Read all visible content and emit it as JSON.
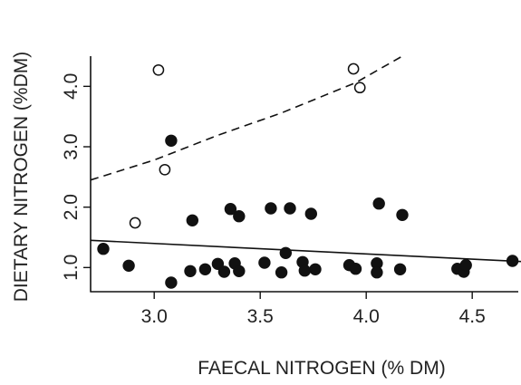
{
  "chart_data": {
    "type": "scatter",
    "title": "",
    "xlabel": "FAECAL NITROGEN (% DM)",
    "ylabel": "DIETARY NITROGEN (%DM)",
    "xlim": [
      2.7,
      4.73
    ],
    "ylim": [
      0.6,
      4.5
    ],
    "x_ticks": [
      "3.0",
      "3.5",
      "4.0",
      "4.5"
    ],
    "y_ticks": [
      "1.0",
      "2.0",
      "3.0",
      "4.0"
    ],
    "x_tick_values": [
      3.0,
      3.5,
      4.0,
      4.5
    ],
    "y_tick_values": [
      1.0,
      2.0,
      3.0,
      4.0
    ],
    "grid": false,
    "colors": {
      "ink": "#111111",
      "background": "#ffffff"
    },
    "series": [
      {
        "marker": "open-circle",
        "points": [
          [
            3.02,
            4.27
          ],
          [
            3.94,
            4.29
          ],
          [
            3.97,
            3.98
          ],
          [
            3.05,
            2.62
          ],
          [
            2.91,
            1.74
          ]
        ]
      },
      {
        "marker": "filled-circle",
        "points": [
          [
            3.08,
            3.1
          ],
          [
            2.76,
            1.31
          ],
          [
            2.88,
            1.03
          ],
          [
            3.08,
            0.75
          ],
          [
            3.17,
            0.94
          ],
          [
            3.18,
            1.78
          ],
          [
            3.24,
            0.97
          ],
          [
            3.3,
            1.06
          ],
          [
            3.33,
            0.93
          ],
          [
            3.36,
            1.97
          ],
          [
            3.38,
            1.07
          ],
          [
            3.4,
            0.94
          ],
          [
            3.4,
            1.85
          ],
          [
            3.52,
            1.08
          ],
          [
            3.55,
            1.98
          ],
          [
            3.6,
            0.92
          ],
          [
            3.62,
            1.24
          ],
          [
            3.64,
            1.98
          ],
          [
            3.7,
            1.09
          ],
          [
            3.71,
            0.95
          ],
          [
            3.74,
            1.89
          ],
          [
            3.76,
            0.97
          ],
          [
            3.92,
            1.04
          ],
          [
            3.95,
            0.98
          ],
          [
            4.05,
            1.07
          ],
          [
            4.05,
            0.92
          ],
          [
            4.06,
            2.06
          ],
          [
            4.16,
            0.97
          ],
          [
            4.17,
            1.87
          ],
          [
            4.43,
            0.98
          ],
          [
            4.46,
            0.93
          ],
          [
            4.47,
            1.04
          ],
          [
            4.69,
            1.11
          ]
        ]
      }
    ],
    "lines": [
      {
        "style": "dashed",
        "x": [
          2.7,
          3.0,
          3.3,
          3.6,
          3.95,
          4.17
        ],
        "y": [
          2.45,
          2.78,
          3.19,
          3.56,
          4.06,
          4.5
        ]
      },
      {
        "style": "solid",
        "x": [
          2.7,
          4.73
        ],
        "y": [
          1.45,
          1.1
        ]
      }
    ]
  }
}
